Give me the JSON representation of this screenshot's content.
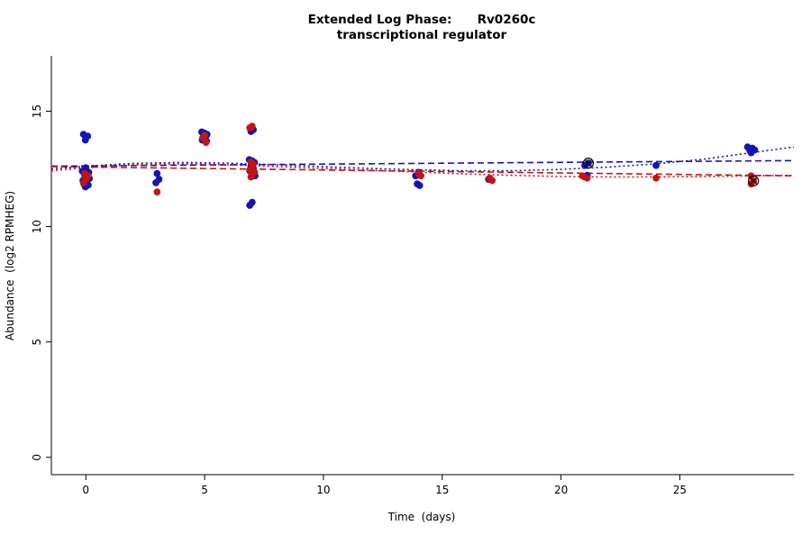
{
  "chart_data": {
    "type": "scatter",
    "title": "Extended Log Phase:      Rv0260c",
    "subtitle": "transcriptional regulator",
    "xlabel": "Time  (days)",
    "ylabel": "Abundance  (log2 RPMHEG)",
    "xlim": [
      -1.45,
      29.8
    ],
    "ylim": [
      -0.75,
      17.4
    ],
    "xticks": [
      0,
      5,
      10,
      15,
      20,
      25
    ],
    "yticks": [
      0,
      5,
      10,
      15
    ],
    "grid": false,
    "legend": "none",
    "colors": {
      "series_blue": "#1414b4",
      "series_red": "#c41414",
      "outlier": "#000000",
      "axis": "#000000"
    },
    "series": [
      {
        "name": "blue",
        "color": "#1414b4",
        "points": [
          [
            -0.1,
            14.0
          ],
          [
            0.08,
            13.92
          ],
          [
            -0.02,
            13.75
          ],
          [
            0.0,
            12.55
          ],
          [
            -0.15,
            12.4
          ],
          [
            0.12,
            12.35
          ],
          [
            -0.05,
            12.25
          ],
          [
            0.05,
            12.15
          ],
          [
            0.15,
            12.08
          ],
          [
            -0.12,
            12.0
          ],
          [
            0.02,
            11.95
          ],
          [
            -0.08,
            11.85
          ],
          [
            0.1,
            11.8
          ],
          [
            -0.02,
            11.72
          ],
          [
            3.0,
            12.3
          ],
          [
            3.08,
            12.05
          ],
          [
            2.95,
            11.9
          ],
          [
            4.88,
            14.1
          ],
          [
            5.0,
            14.05
          ],
          [
            5.1,
            14.0
          ],
          [
            4.95,
            13.95
          ],
          [
            5.05,
            13.9
          ],
          [
            5.0,
            13.82
          ],
          [
            4.9,
            13.75
          ],
          [
            5.08,
            13.7
          ],
          [
            7.05,
            14.2
          ],
          [
            6.95,
            14.12
          ],
          [
            6.88,
            12.9
          ],
          [
            7.0,
            12.85
          ],
          [
            7.1,
            12.78
          ],
          [
            6.95,
            12.62
          ],
          [
            7.05,
            12.52
          ],
          [
            6.9,
            12.42
          ],
          [
            7.0,
            12.3
          ],
          [
            7.12,
            12.2
          ],
          [
            7.0,
            11.05
          ],
          [
            6.9,
            10.92
          ],
          [
            14.0,
            12.35
          ],
          [
            13.88,
            12.2
          ],
          [
            13.95,
            11.85
          ],
          [
            14.05,
            11.78
          ],
          [
            16.95,
            12.05
          ],
          [
            21.0,
            12.65
          ],
          [
            21.1,
            12.22
          ],
          [
            21.15,
            12.75
          ],
          [
            24.0,
            12.65
          ],
          [
            27.85,
            13.45
          ],
          [
            28.05,
            13.4
          ],
          [
            28.15,
            13.32
          ],
          [
            27.95,
            13.28
          ],
          [
            28.0,
            13.2
          ]
        ]
      },
      {
        "name": "red",
        "color": "#c41414",
        "points": [
          [
            -0.05,
            12.3
          ],
          [
            0.1,
            12.2
          ],
          [
            0.0,
            12.05
          ],
          [
            -0.1,
            11.9
          ],
          [
            3.0,
            11.5
          ],
          [
            5.0,
            13.95
          ],
          [
            4.92,
            13.85
          ],
          [
            5.06,
            13.65
          ],
          [
            7.0,
            14.35
          ],
          [
            6.9,
            14.28
          ],
          [
            6.95,
            12.8
          ],
          [
            7.05,
            12.7
          ],
          [
            7.0,
            12.56
          ],
          [
            6.9,
            12.46
          ],
          [
            7.1,
            12.36
          ],
          [
            7.0,
            12.26
          ],
          [
            6.95,
            12.15
          ],
          [
            14.0,
            12.3
          ],
          [
            14.1,
            12.2
          ],
          [
            17.0,
            12.1
          ],
          [
            17.1,
            12.0
          ],
          [
            20.9,
            12.2
          ],
          [
            21.0,
            12.15
          ],
          [
            21.1,
            12.1
          ],
          [
            24.0,
            12.1
          ],
          [
            28.0,
            12.2
          ],
          [
            28.1,
            11.98
          ],
          [
            28.0,
            11.85
          ]
        ]
      }
    ],
    "outlier_points": {
      "marker": "circle-x",
      "color": "#000000",
      "points": [
        [
          21.15,
          12.75
        ],
        [
          28.1,
          11.98
        ]
      ]
    },
    "trend_lines": [
      {
        "name": "blue-dashed-trend",
        "color": "#1414b4",
        "dash": "7,4",
        "points": [
          [
            -1.45,
            12.62
          ],
          [
            29.8,
            12.86
          ]
        ]
      },
      {
        "name": "red-dashed-trend",
        "color": "#c41414",
        "dash": "7,4",
        "points": [
          [
            -1.45,
            12.6
          ],
          [
            29.8,
            12.2
          ]
        ]
      },
      {
        "name": "blue-dotted-trend",
        "color": "#1414b4",
        "dash": "2,3",
        "points": [
          [
            -1.45,
            12.5
          ],
          [
            0,
            12.62
          ],
          [
            2,
            12.74
          ],
          [
            4,
            12.78
          ],
          [
            6,
            12.75
          ],
          [
            8,
            12.68
          ],
          [
            10,
            12.6
          ],
          [
            12,
            12.52
          ],
          [
            14,
            12.46
          ],
          [
            16,
            12.42
          ],
          [
            18,
            12.42
          ],
          [
            20,
            12.48
          ],
          [
            22,
            12.58
          ],
          [
            24,
            12.72
          ],
          [
            26,
            12.92
          ],
          [
            28,
            13.2
          ],
          [
            29.8,
            13.45
          ]
        ]
      },
      {
        "name": "red-dotted-trend",
        "color": "#c41414",
        "dash": "2,3",
        "points": [
          [
            -1.45,
            12.42
          ],
          [
            0,
            12.55
          ],
          [
            2,
            12.68
          ],
          [
            4,
            12.72
          ],
          [
            6,
            12.68
          ],
          [
            8,
            12.6
          ],
          [
            10,
            12.52
          ],
          [
            12,
            12.44
          ],
          [
            14,
            12.36
          ],
          [
            16,
            12.28
          ],
          [
            18,
            12.22
          ],
          [
            20,
            12.17
          ],
          [
            22,
            12.15
          ],
          [
            24,
            12.15
          ],
          [
            26,
            12.17
          ],
          [
            28,
            12.2
          ],
          [
            29.8,
            12.22
          ]
        ]
      }
    ]
  }
}
